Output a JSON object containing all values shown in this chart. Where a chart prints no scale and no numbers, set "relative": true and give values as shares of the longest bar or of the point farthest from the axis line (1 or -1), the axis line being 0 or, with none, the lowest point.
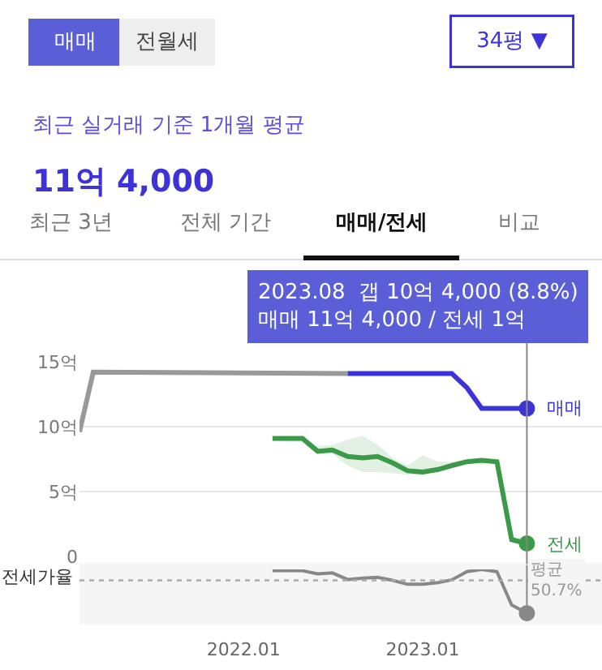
{
  "chart_data": [
    {
      "type": "line",
      "title": "최근 실거래 기준 1개월 평균",
      "subtitle": "11억 4,000",
      "annotations": [
        "매매",
        "전월세",
        "34평 ▼",
        "최근 3년",
        "전체 기간",
        "매매/전세",
        "비교",
        "2023.08  갭 10억 4,000 (8.8%)\n매매 11억 4,000 / 전세 1억"
      ],
      "xlim": [
        "2021-02",
        "2024-01"
      ],
      "ylim": [
        0,
        15
      ],
      "yticks": [
        0,
        {
          "value": 5,
          "label": "5억"
        },
        {
          "value": 10,
          "label": "10억"
        },
        {
          "value": 15,
          "label": "15억"
        }
      ],
      "grid": "y",
      "legend": false,
      "tick_labels": "y",
      "series": [
        {
          "color": "#999999",
          "x": [
            "2021-02",
            "2021-03",
            "2022-08"
          ],
          "values": [
            9.6,
            14.2,
            14.1
          ]
        },
        {
          "name": "매매",
          "color": "#3b35d8",
          "x": [
            "2022-08",
            "2023-03",
            "2023-04",
            "2023-05",
            "2023-08"
          ],
          "values": [
            14.1,
            14.1,
            13.0,
            11.4,
            11.4
          ]
        },
        {
          "name": "전세",
          "color": "#3a9a48",
          "x": [
            "2022-03",
            "2022-05",
            "2022-06",
            "2022-07",
            "2022-08",
            "2022-09",
            "2022-10",
            "2022-11",
            "2022-12",
            "2023-01",
            "2023-02",
            "2023-03",
            "2023-04",
            "2023-05",
            "2023-06",
            "2023-07",
            "2023-08"
          ],
          "values": [
            9.1,
            9.1,
            8.1,
            8.2,
            7.7,
            7.6,
            7.7,
            7.2,
            6.6,
            6.5,
            6.7,
            7.0,
            7.3,
            7.4,
            7.3,
            1.3,
            1.0
          ],
          "upper": [
            9.1,
            9.1,
            8.5,
            8.6,
            9.0,
            9.3,
            8.6,
            7.6,
            7.0,
            7.8,
            7.3,
            7.3,
            7.5,
            7.5,
            null,
            null,
            null
          ],
          "lower": [
            8.9,
            8.8,
            7.9,
            7.9,
            7.0,
            6.5,
            6.5,
            6.4,
            6.3,
            6.4,
            6.5,
            6.9,
            7.2,
            7.3,
            null,
            null,
            null
          ]
        },
        {
          "type": "scatter",
          "marker": "circle",
          "x": [
            "2023-08",
            "2023-08"
          ],
          "values": [
            11.4,
            1.0
          ],
          "colors": [
            "#3b35d8",
            "#3a9a48"
          ]
        }
      ],
      "ref_lines": [
        {
          "axis": "x",
          "value": "2023-08",
          "color": "#888888"
        }
      ]
    },
    {
      "type": "line",
      "ylabel": "전세가율",
      "relative": true,
      "legend": false,
      "tick_labels": "x",
      "xlim": [
        "2021-02",
        "2024-01"
      ],
      "xticks": [
        {
          "value": "2022-01",
          "label": "2022.01"
        },
        {
          "value": "2023-01",
          "label": "2023.01"
        }
      ],
      "series": [
        {
          "color": "#888888",
          "x": [
            "2022-03",
            "2022-05",
            "2022-06",
            "2022-07",
            "2022-08",
            "2022-09",
            "2022-10",
            "2022-11",
            "2022-12",
            "2023-01",
            "2023-02",
            "2023-03",
            "2023-04",
            "2023-05",
            "2023-06",
            "2023-07",
            "2023-08"
          ],
          "values": [
            0.97,
            0.97,
            0.9,
            0.92,
            0.77,
            0.8,
            0.82,
            0.75,
            0.66,
            0.66,
            0.7,
            0.76,
            0.95,
            1.0,
            0.95,
            0.19,
            0.0
          ]
        },
        {
          "type": "scatter",
          "marker": "circle",
          "x": [
            "2023-08"
          ],
          "values": [
            0.0
          ],
          "colors": [
            "#888888"
          ]
        }
      ],
      "ref_lines": [
        {
          "axis": "y",
          "value": 0.75,
          "label": "평균\n50.7%",
          "color": "#aaaaaa",
          "line_style": "dotted"
        },
        {
          "axis": "x",
          "value": "2023-08",
          "color": "#888888"
        }
      ]
    }
  ]
}
